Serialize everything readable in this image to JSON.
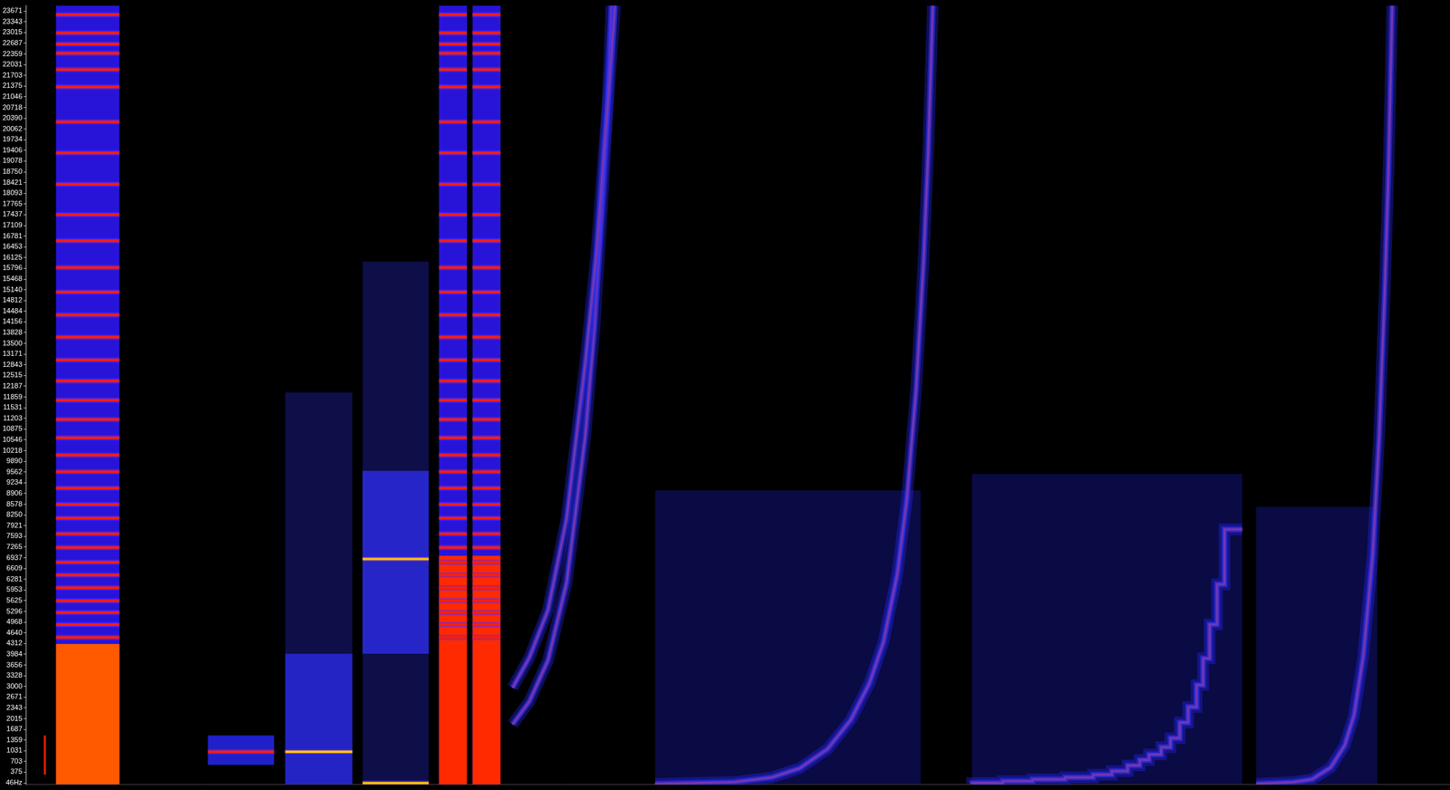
{
  "chart_data": {
    "type": "line",
    "tick_labels": "y",
    "grid": false,
    "xlim": [
      40,
      1568
    ],
    "ylim": [
      0,
      23840
    ],
    "yticks": [
      {
        "value": 46,
        "label": "46Hz"
      },
      375,
      703,
      1031,
      1359,
      1687,
      2015,
      2343,
      2671,
      3000,
      3328,
      3656,
      3984,
      4312,
      4640,
      4968,
      5296,
      5625,
      5953,
      6281,
      6609,
      6937,
      7265,
      7593,
      7921,
      8250,
      8578,
      8906,
      9234,
      9562,
      9890,
      10218,
      10546,
      10875,
      11203,
      11531,
      11859,
      12187,
      12515,
      12843,
      13171,
      13500,
      13828,
      14156,
      14484,
      14812,
      15140,
      15468,
      15796,
      16125,
      16453,
      16781,
      17109,
      17437,
      17765,
      18093,
      18421,
      18750,
      19078,
      19406,
      19734,
      20062,
      20390,
      20718,
      21046,
      21375,
      21703,
      22031,
      22359,
      22687,
      23015,
      23343,
      23671
    ],
    "bands": [
      {
        "x": [
          59,
          61
        ],
        "range": [
          300,
          1500
        ],
        "color": "#ff2000"
      },
      {
        "x": [
          72,
          140
        ],
        "range": [
          0,
          23840
        ],
        "color": "#2814d8",
        "lines": {
          "values": [
            23560,
            23000,
            22660,
            22380,
            21880,
            21350,
            20280,
            19330,
            18370,
            17440,
            16640,
            15820,
            15070,
            14370,
            13690,
            12990,
            12350,
            11760,
            11170,
            10610,
            10080,
            9570,
            9070,
            8570,
            8150,
            7670,
            7250,
            6800,
            6410,
            6020,
            5620,
            5260,
            4890,
            4500
          ],
          "color": "#ff1e00"
        }
      },
      {
        "x": [
          72,
          140
        ],
        "range": [
          0,
          4300
        ],
        "color": "#ff5a00"
      },
      {
        "x": [
          235,
          306
        ],
        "range": [
          600,
          1500
        ],
        "color": "#2020c8",
        "lines": {
          "values": [
            1000
          ],
          "color": "#ff2000"
        }
      },
      {
        "x": [
          318,
          390
        ],
        "range": [
          0,
          12000
        ],
        "color": "#0e0e48"
      },
      {
        "x": [
          318,
          390
        ],
        "range": [
          0,
          4000
        ],
        "color": "#2424c4",
        "lines": {
          "values": [
            1000
          ],
          "color": "#ffc800"
        }
      },
      {
        "x": [
          401,
          472
        ],
        "range": [
          0,
          16000
        ],
        "color": "#0e0e48"
      },
      {
        "x": [
          401,
          472
        ],
        "range": [
          4000,
          9600
        ],
        "color": "#2626c8",
        "lines": {
          "values": [
            6900,
            40
          ],
          "color": "#ffc000"
        }
      },
      {
        "x": [
          483,
          513
        ],
        "range": [
          0,
          23840
        ],
        "color": "#2814d8",
        "lines": {
          "values": [
            23560,
            23000,
            22660,
            22380,
            21880,
            21350,
            20280,
            19330,
            18370,
            17440,
            16640,
            15820,
            15070,
            14370,
            13690,
            12990,
            12350,
            11760,
            11170,
            10610,
            10080,
            9570,
            9070,
            8570,
            8150,
            7670,
            7250,
            6800,
            6410,
            6020,
            5620,
            5260,
            4890,
            4500
          ],
          "color": "#ff1e00"
        }
      },
      {
        "x": [
          483,
          513
        ],
        "range": [
          0,
          7000
        ],
        "color": "#ff2a00"
      },
      {
        "x": [
          519,
          549
        ],
        "range": [
          0,
          23840
        ],
        "color": "#2814d8",
        "lines": {
          "values": [
            23560,
            23000,
            22660,
            22380,
            21880,
            21350,
            20280,
            19330,
            18370,
            17440,
            16640,
            15820,
            15070,
            14370,
            13690,
            12990,
            12350,
            11760,
            11170,
            10610,
            10080,
            9570,
            9070,
            8570,
            8150,
            7670,
            7250,
            6800,
            6410,
            6020,
            5620,
            5260,
            4890,
            4500
          ],
          "color": "#ff1e00"
        }
      },
      {
        "x": [
          519,
          549
        ],
        "range": [
          0,
          7000
        ],
        "color": "#ff2a00"
      },
      {
        "x": [
          715,
          1000
        ],
        "range": [
          0,
          9000
        ],
        "color": "#0a0a44"
      },
      {
        "x": [
          1055,
          1345
        ],
        "range": [
          0,
          9500
        ],
        "color": "#0a0a44"
      },
      {
        "x": [
          1360,
          1490
        ],
        "range": [
          0,
          8500
        ],
        "color": "#0a0a44"
      }
    ],
    "series": [
      {
        "color": "#ff4000",
        "line_style": "solid",
        "x": [
          562,
          580,
          600,
          620,
          640,
          652,
          660,
          667,
          672
        ],
        "values": [
          2960,
          3885,
          5343,
          8145,
          12909,
          16272,
          19355,
          21877,
          23839
        ]
      },
      {
        "color": "#ff4000",
        "line_style": "solid",
        "x": [
          562,
          580,
          600,
          620,
          640,
          650,
          658,
          664,
          668
        ],
        "values": [
          1839,
          2540,
          3801,
          6183,
          10667,
          14030,
          17674,
          20756,
          23839
        ]
      },
      {
        "color": "#ff4000",
        "line_style": "solid",
        "x": [
          715,
          760,
          800,
          840,
          870,
          900,
          925,
          945,
          960,
          975,
          985,
          995,
          1003,
          1008,
          1013
        ],
        "values": [
          18,
          46,
          74,
          214,
          495,
          1083,
          1980,
          3101,
          4362,
          6463,
          8706,
          12070,
          15992,
          19355,
          23839
        ]
      },
      {
        "color": "#ff4000",
        "line_style": "steps",
        "x": [
          1055,
          1088,
          1120,
          1155,
          1185,
          1205,
          1222,
          1235,
          1245,
          1258,
          1268,
          1278,
          1287,
          1296,
          1303,
          1310,
          1318,
          1326,
          1335,
          1345
        ],
        "values": [
          18,
          46,
          102,
          158,
          214,
          298,
          410,
          579,
          747,
          915,
          1140,
          1419,
          1896,
          2372,
          3045,
          3857,
          4894,
          6127,
          7809,
          7809
        ]
      },
      {
        "color": "#ff4000",
        "line_style": "solid",
        "x": [
          1360,
          1400,
          1420,
          1440,
          1455,
          1465,
          1475,
          1485,
          1492,
          1498,
          1502,
          1506
        ],
        "values": [
          18,
          74,
          158,
          523,
          1195,
          2120,
          3941,
          7024,
          10667,
          15151,
          18795,
          23839
        ]
      }
    ]
  }
}
